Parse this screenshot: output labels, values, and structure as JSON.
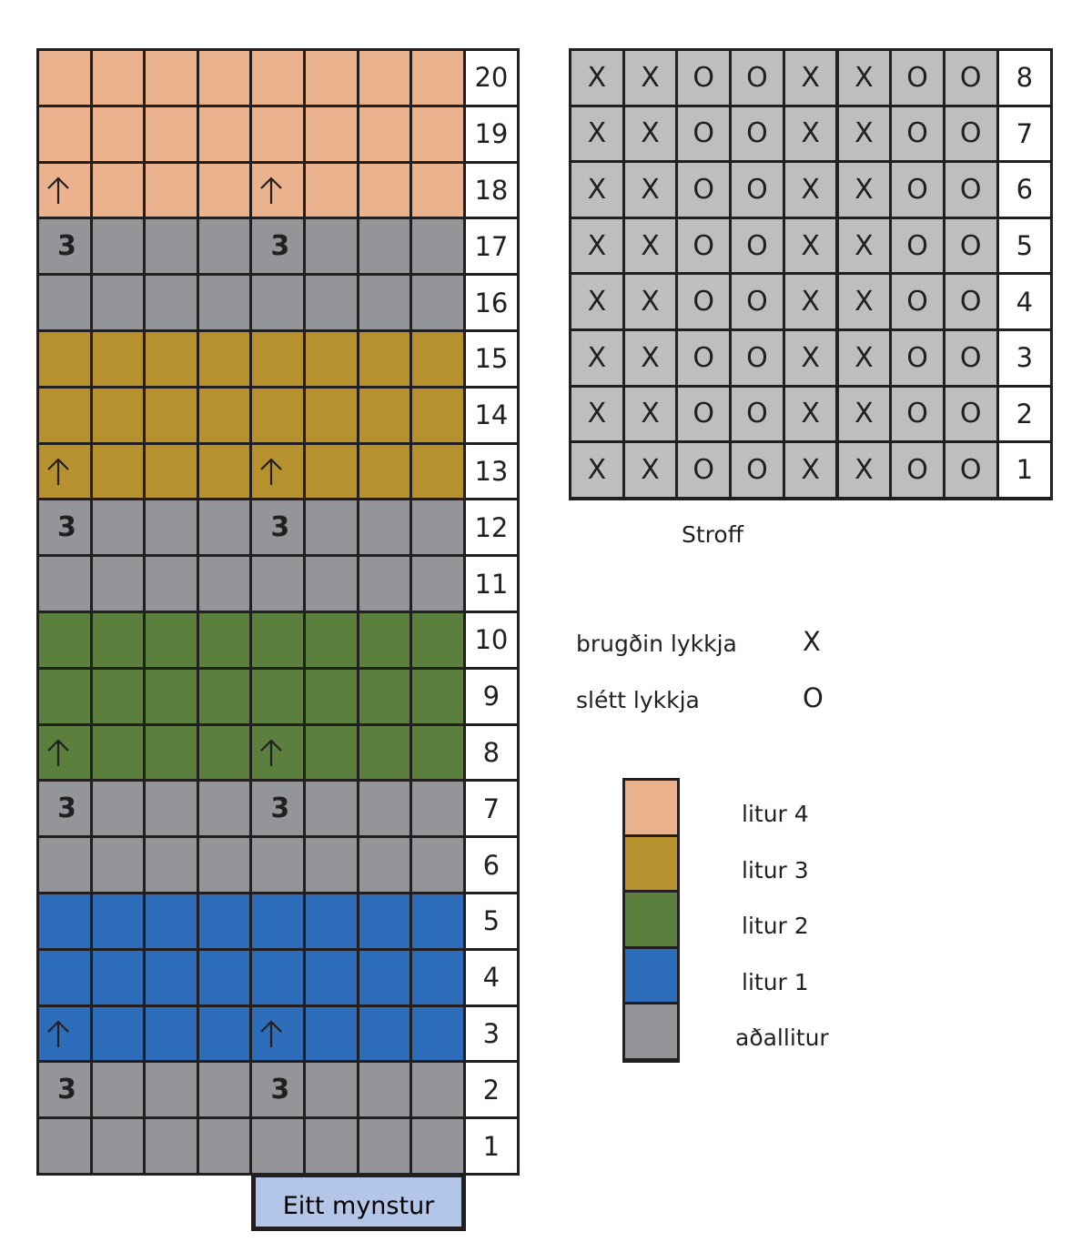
{
  "colors": {
    "litur4": "#ebb38d",
    "litur3": "#b8912f",
    "litur2": "#5b803e",
    "litur1": "#2e6db9",
    "adallitur": "#939598",
    "stroff": "#bcbec0",
    "pattern_label_bg": "#b4c6e7"
  },
  "main_chart": {
    "rows": [
      {
        "row": "20",
        "color": "litur4",
        "cells": [
          "",
          "",
          "",
          "",
          "",
          "",
          "",
          ""
        ]
      },
      {
        "row": "19",
        "color": "litur4",
        "cells": [
          "",
          "",
          "",
          "",
          "",
          "",
          "",
          ""
        ]
      },
      {
        "row": "18",
        "color": "litur4",
        "cells": [
          "↑",
          "",
          "",
          "",
          "↑",
          "",
          "",
          ""
        ]
      },
      {
        "row": "17",
        "color": "adallitur",
        "cells": [
          "3",
          "",
          "",
          "",
          "3",
          "",
          "",
          ""
        ]
      },
      {
        "row": "16",
        "color": "adallitur",
        "cells": [
          "",
          "",
          "",
          "",
          "",
          "",
          "",
          ""
        ]
      },
      {
        "row": "15",
        "color": "litur3",
        "cells": [
          "",
          "",
          "",
          "",
          "",
          "",
          "",
          ""
        ]
      },
      {
        "row": "14",
        "color": "litur3",
        "cells": [
          "",
          "",
          "",
          "",
          "",
          "",
          "",
          ""
        ]
      },
      {
        "row": "13",
        "color": "litur3",
        "cells": [
          "↑",
          "",
          "",
          "",
          "↑",
          "",
          "",
          ""
        ]
      },
      {
        "row": "12",
        "color": "adallitur",
        "cells": [
          "3",
          "",
          "",
          "",
          "3",
          "",
          "",
          ""
        ]
      },
      {
        "row": "11",
        "color": "adallitur",
        "cells": [
          "",
          "",
          "",
          "",
          "",
          "",
          "",
          ""
        ]
      },
      {
        "row": "10",
        "color": "litur2",
        "cells": [
          "",
          "",
          "",
          "",
          "",
          "",
          "",
          ""
        ]
      },
      {
        "row": "9",
        "color": "litur2",
        "cells": [
          "",
          "",
          "",
          "",
          "",
          "",
          "",
          ""
        ]
      },
      {
        "row": "8",
        "color": "litur2",
        "cells": [
          "↑",
          "",
          "",
          "",
          "↑",
          "",
          "",
          ""
        ]
      },
      {
        "row": "7",
        "color": "adallitur",
        "cells": [
          "3",
          "",
          "",
          "",
          "3",
          "",
          "",
          ""
        ]
      },
      {
        "row": "6",
        "color": "adallitur",
        "cells": [
          "",
          "",
          "",
          "",
          "",
          "",
          "",
          ""
        ]
      },
      {
        "row": "5",
        "color": "litur1",
        "cells": [
          "",
          "",
          "",
          "",
          "",
          "",
          "",
          ""
        ]
      },
      {
        "row": "4",
        "color": "litur1",
        "cells": [
          "",
          "",
          "",
          "",
          "",
          "",
          "",
          ""
        ]
      },
      {
        "row": "3",
        "color": "litur1",
        "cells": [
          "↑",
          "",
          "",
          "",
          "↑",
          "",
          "",
          ""
        ]
      },
      {
        "row": "2",
        "color": "adallitur",
        "cells": [
          "3",
          "",
          "",
          "",
          "3",
          "",
          "",
          ""
        ]
      },
      {
        "row": "1",
        "color": "adallitur",
        "cells": [
          "",
          "",
          "",
          "",
          "",
          "",
          "",
          ""
        ]
      }
    ],
    "pattern_label": "Eitt mynstur"
  },
  "stroff_chart": {
    "title": "Stroff",
    "rows": [
      {
        "row": "8",
        "cells": [
          "X",
          "X",
          "O",
          "O",
          "X",
          "X",
          "O",
          "O"
        ]
      },
      {
        "row": "7",
        "cells": [
          "X",
          "X",
          "O",
          "O",
          "X",
          "X",
          "O",
          "O"
        ]
      },
      {
        "row": "6",
        "cells": [
          "X",
          "X",
          "O",
          "O",
          "X",
          "X",
          "O",
          "O"
        ]
      },
      {
        "row": "5",
        "cells": [
          "X",
          "X",
          "O",
          "O",
          "X",
          "X",
          "O",
          "O"
        ]
      },
      {
        "row": "4",
        "cells": [
          "X",
          "X",
          "O",
          "O",
          "X",
          "X",
          "O",
          "O"
        ]
      },
      {
        "row": "3",
        "cells": [
          "X",
          "X",
          "O",
          "O",
          "X",
          "X",
          "O",
          "O"
        ]
      },
      {
        "row": "2",
        "cells": [
          "X",
          "X",
          "O",
          "O",
          "X",
          "X",
          "O",
          "O"
        ]
      },
      {
        "row": "1",
        "cells": [
          "X",
          "X",
          "O",
          "O",
          "X",
          "X",
          "O",
          "O"
        ]
      }
    ]
  },
  "stitch_legend": [
    {
      "label": "brugðin lykkja",
      "symbol": "X"
    },
    {
      "label": "slétt lykkja",
      "symbol": "O"
    }
  ],
  "color_legend": [
    {
      "label": "litur 4",
      "color": "litur4"
    },
    {
      "label": "litur 3",
      "color": "litur3"
    },
    {
      "label": "litur 2",
      "color": "litur2"
    },
    {
      "label": "litur 1",
      "color": "litur1"
    },
    {
      "label": "aðallitur",
      "color": "adallitur"
    }
  ]
}
